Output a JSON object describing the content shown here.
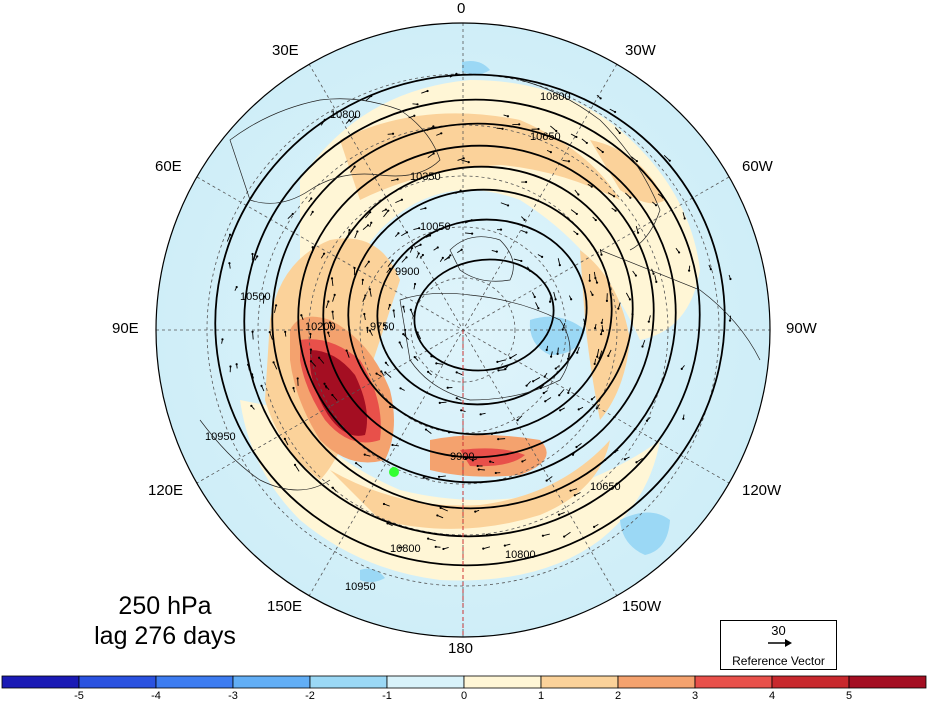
{
  "map": {
    "level_label": "250 hPa",
    "lag_label": "lag 276 days",
    "longitude_labels": {
      "top": "0",
      "bottom": "180",
      "left": "90E",
      "right": "90W",
      "upper_left_1": "30E",
      "upper_left_2": "60E",
      "upper_right_1": "30W",
      "upper_right_2": "60W",
      "lower_left_1": "120E",
      "lower_left_2": "150E",
      "lower_right_1": "120W",
      "lower_right_2": "150W"
    },
    "contour_labels": [
      "10800",
      "10650",
      "10500",
      "10350",
      "10200",
      "10050",
      "9900",
      "9750",
      "10950"
    ],
    "reference_vector": {
      "value": "30",
      "label": "Reference Vector"
    },
    "colorbar": {
      "ticks": [
        "-5",
        "-4",
        "-3",
        "-2",
        "-1",
        "0",
        "1",
        "2",
        "3",
        "4",
        "5"
      ],
      "colors": [
        "#1a1ab5",
        "#2a52e0",
        "#3d7cf0",
        "#62aef5",
        "#9bd8f5",
        "#d8f2fa",
        "#fff6d6",
        "#fbd29a",
        "#f4a26e",
        "#e8504a",
        "#c8282d",
        "#a40e22"
      ]
    },
    "marker_color": "#33ff33"
  }
}
